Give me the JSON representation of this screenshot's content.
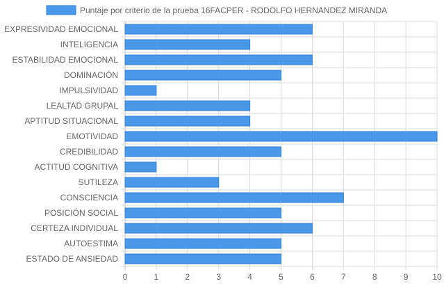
{
  "chart_data": {
    "type": "bar",
    "orientation": "horizontal",
    "categories": [
      "EXPRESIVIDAD EMOCIONAL",
      "INTELIGENCIA",
      "ESTABILIDAD EMOCIONAL",
      "DOMINACIÓN",
      "IMPULSIVIDAD",
      "LEALTAD GRUPAL",
      "APTITUD SITUACIONAL",
      "EMOTIVIDAD",
      "CREDIBILIDAD",
      "ACTITUD COGNITIVA",
      "SUTILEZA",
      "CONSCIENCIA",
      "POSICIÓN SOCIAL",
      "CERTEZA INDIVIDUAL",
      "AUTOESTIMA",
      "ESTADO DE ANSIEDAD"
    ],
    "series": [
      {
        "name": "Puntaje por criterio de la prueba 16FACPER - RODOLFO HERNANDEZ MIRANDA",
        "values": [
          6,
          4,
          6,
          5,
          1,
          4,
          4,
          10,
          5,
          1,
          3,
          7,
          5,
          6,
          5,
          5
        ]
      }
    ],
    "xlim": [
      0,
      10
    ],
    "xticks": [
      "0",
      "1",
      "2",
      "3",
      "4",
      "5",
      "6",
      "7",
      "8",
      "9",
      "10"
    ],
    "grid": true,
    "legend_position": "top",
    "colors": {
      "bar_fill": "#4a98e8",
      "bar_stroke": "#2f7fd6",
      "grid": "#d9d9d9",
      "text": "#666666"
    }
  }
}
